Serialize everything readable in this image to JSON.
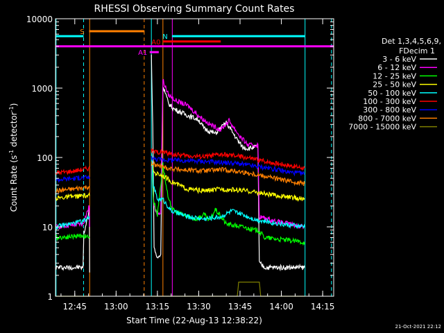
{
  "chart_data": {
    "type": "line",
    "title": "RHESSI Observing Summary Count Rates",
    "xlabel": "Start Time (22-Aug-13 12:38:22)",
    "ylabel": "Count Rate (s⁻¹ detector⁻¹)",
    "ylabel_main": "Count Rate (s",
    "ylabel_sup1": "-1",
    "ylabel_mid": " detector",
    "ylabel_sup2": "-1",
    "ylabel_end": ")",
    "x_range_min": [
      758,
      859
    ],
    "y_scale": "log",
    "y_range": [
      1,
      10000
    ],
    "x_ticks": [
      "12:45",
      "13:00",
      "13:15",
      "13:30",
      "13:45",
      "14:00",
      "14:15"
    ],
    "x_tick_min": [
      765,
      780,
      795,
      810,
      825,
      840,
      855
    ],
    "y_ticks": [
      "1",
      "10",
      "100",
      "1000",
      "10000"
    ],
    "y_tick_vals": [
      1,
      10,
      100,
      1000,
      10000
    ],
    "legend_header": [
      "Det 1,3,4,5,6,9,",
      "FDecim 1"
    ],
    "stamp": "21-Oct-2021 22:12",
    "flags": [
      {
        "label": "N",
        "color": "#00ffff",
        "y": 5600,
        "segs": [
          [
            758,
            768.2
          ],
          [
            800.3,
            848.5
          ]
        ]
      },
      {
        "label": "S",
        "color": "#ff8000",
        "y": 6600,
        "segs": [
          [
            770.2,
            790.3
          ]
        ]
      },
      {
        "label": "A0",
        "color": "#ff0000",
        "y": 4700,
        "segs": [
          [
            797,
            818
          ]
        ]
      },
      {
        "label": "A1",
        "color": "#ff00ff",
        "y": 3300,
        "segs": [
          [
            792.2,
            795.5
          ]
        ]
      },
      {
        "label": "",
        "color": "#ff00ff",
        "y": 4000,
        "segs": [
          [
            758,
            859
          ]
        ]
      }
    ],
    "vlines": [
      {
        "x": 758.2,
        "color": "#00ffff",
        "dash": false
      },
      {
        "x": 768.2,
        "color": "#00ffff",
        "dash": true
      },
      {
        "x": 770.4,
        "color": "#ff8000",
        "dash": false
      },
      {
        "x": 790.2,
        "color": "#ff8000",
        "dash": true
      },
      {
        "x": 792.8,
        "color": "#00ffff",
        "dash": false
      },
      {
        "x": 800.4,
        "color": "#ff00ff",
        "dash": false
      },
      {
        "x": 797.0,
        "color": "#ff8000",
        "dash": false
      },
      {
        "x": 848.6,
        "color": "#00ffff",
        "dash": false
      },
      {
        "x": 858.2,
        "color": "#00ffff",
        "dash": true
      }
    ],
    "series": [
      {
        "name": "3 - 6 keV",
        "color": "#ffffff",
        "segs": [
          [
            [
              758.2,
              2.6
            ],
            [
              768,
              2.6
            ],
            [
              768.3,
              8
            ],
            [
              770.3,
              18
            ],
            [
              770.4,
              2.2
            ]
          ],
          [
            [
              792.8,
              3000
            ],
            [
              793.3,
              300
            ],
            [
              793.8,
              5
            ],
            [
              795,
              3.5
            ],
            [
              796.2,
              4
            ],
            [
              797,
              1100
            ],
            [
              799,
              600
            ],
            [
              801,
              500
            ],
            [
              805,
              420
            ],
            [
              810,
              350
            ],
            [
              812,
              260
            ],
            [
              816,
              220
            ],
            [
              820,
              320
            ],
            [
              824,
              180
            ],
            [
              826,
              140
            ],
            [
              828,
              135
            ],
            [
              830,
              140
            ],
            [
              831.5,
              145
            ],
            [
              832,
              3
            ],
            [
              834,
              2.6
            ],
            [
              848.5,
              2.6
            ]
          ]
        ]
      },
      {
        "name": "6 - 12 keV",
        "color": "#ff00ff",
        "segs": [
          [
            [
              758.2,
              10
            ],
            [
              768,
              11
            ],
            [
              770.3,
              20
            ],
            [
              770.4,
              10
            ]
          ],
          [
            [
              792.8,
              80
            ],
            [
              793.4,
              30
            ],
            [
              794,
              18
            ],
            [
              795,
              16
            ],
            [
              796.2,
              16
            ],
            [
              797,
              1300
            ],
            [
              799,
              800
            ],
            [
              802,
              650
            ],
            [
              806,
              560
            ],
            [
              810,
              400
            ],
            [
              814,
              300
            ],
            [
              818,
              250
            ],
            [
              821,
              340
            ],
            [
              825,
              200
            ],
            [
              828,
              150
            ],
            [
              830,
              150
            ],
            [
              831.5,
              150
            ],
            [
              832,
              14
            ],
            [
              838,
              12
            ],
            [
              848.5,
              10
            ]
          ]
        ]
      },
      {
        "name": "12 - 25 keV",
        "color": "#00ff00",
        "segs": [
          [
            [
              758.2,
              7
            ],
            [
              768,
              7.5
            ],
            [
              770.4,
              7
            ]
          ],
          [
            [
              792.8,
              130
            ],
            [
              793.5,
              25
            ],
            [
              795,
              15
            ],
            [
              797,
              80
            ],
            [
              799,
              24
            ],
            [
              801,
              17
            ],
            [
              806,
              14
            ],
            [
              809,
              13
            ],
            [
              812,
              15
            ],
            [
              814,
              12
            ],
            [
              816,
              18
            ],
            [
              820,
              11
            ],
            [
              826,
              10
            ],
            [
              830,
              9
            ],
            [
              831.5,
              9
            ],
            [
              834,
              7
            ],
            [
              848.5,
              6
            ]
          ]
        ]
      },
      {
        "name": "25 - 50 keV",
        "color": "#ffff00",
        "segs": [
          [
            [
              758.2,
              26
            ],
            [
              768,
              28
            ],
            [
              770.4,
              28
            ]
          ],
          [
            [
              792.8,
              80
            ],
            [
              794,
              60
            ],
            [
              797,
              55
            ],
            [
              800,
              45
            ],
            [
              806,
              35
            ],
            [
              812,
              33
            ],
            [
              818,
              35
            ],
            [
              824,
              34
            ],
            [
              830,
              32
            ],
            [
              836,
              29
            ],
            [
              842,
              27
            ],
            [
              848.5,
              25
            ]
          ]
        ]
      },
      {
        "name": "50 - 100 keV",
        "color": "#00ffff",
        "segs": [
          [
            [
              758.2,
              10
            ],
            [
              768,
              12
            ],
            [
              770.4,
              14
            ]
          ],
          [
            [
              792.8,
              130
            ],
            [
              793.5,
              40
            ],
            [
              795,
              25
            ],
            [
              797,
              25
            ],
            [
              800,
              17
            ],
            [
              806,
              14
            ],
            [
              812,
              13
            ],
            [
              818,
              14
            ],
            [
              822,
              17
            ],
            [
              826,
              15
            ],
            [
              830,
              13
            ],
            [
              834,
              12
            ],
            [
              840,
              11
            ],
            [
              848.5,
              10
            ]
          ]
        ]
      },
      {
        "name": "100 - 300 keV",
        "color": "#ff0000",
        "segs": [
          [
            [
              758.2,
              60
            ],
            [
              764,
              63
            ],
            [
              770.4,
              70
            ]
          ],
          [
            [
              792.8,
              125
            ],
            [
              794,
              120
            ],
            [
              797,
              120
            ],
            [
              801,
              110
            ],
            [
              807,
              105
            ],
            [
              812,
              103
            ],
            [
              818,
              110
            ],
            [
              824,
              105
            ],
            [
              830,
              95
            ],
            [
              836,
              85
            ],
            [
              842,
              78
            ],
            [
              848.5,
              70
            ]
          ]
        ]
      },
      {
        "name": "300 - 800 keV",
        "color": "#0000ff",
        "segs": [
          [
            [
              758.2,
              48
            ],
            [
              764,
              50
            ],
            [
              770.4,
              52
            ]
          ],
          [
            [
              792.8,
              100
            ],
            [
              794,
              95
            ],
            [
              799,
              92
            ],
            [
              805,
              90
            ],
            [
              812,
              88
            ],
            [
              818,
              85
            ],
            [
              824,
              82
            ],
            [
              830,
              75
            ],
            [
              836,
              70
            ],
            [
              842,
              62
            ],
            [
              848.5,
              58
            ]
          ]
        ]
      },
      {
        "name": "800 - 7000 keV",
        "color": "#ff8000",
        "segs": [
          [
            [
              758.2,
              33
            ],
            [
              764,
              35
            ],
            [
              770.4,
              38
            ]
          ],
          [
            [
              792.8,
              85
            ],
            [
              794,
              78
            ],
            [
              799,
              70
            ],
            [
              805,
              66
            ],
            [
              812,
              64
            ],
            [
              818,
              67
            ],
            [
              824,
              63
            ],
            [
              830,
              58
            ],
            [
              836,
              52
            ],
            [
              842,
              46
            ],
            [
              848.5,
              42
            ]
          ]
        ]
      },
      {
        "name": "7000 - 15000 keV",
        "color": "#808000",
        "segs": [
          [
            [
              758.2,
              1
            ],
            [
              770.4,
              1
            ]
          ],
          [
            [
              792.8,
              1
            ],
            [
              824,
              1
            ],
            [
              824.5,
              1.6
            ],
            [
              832,
              1.6
            ],
            [
              832.5,
              1
            ],
            [
              848.5,
              1
            ]
          ]
        ]
      }
    ]
  }
}
